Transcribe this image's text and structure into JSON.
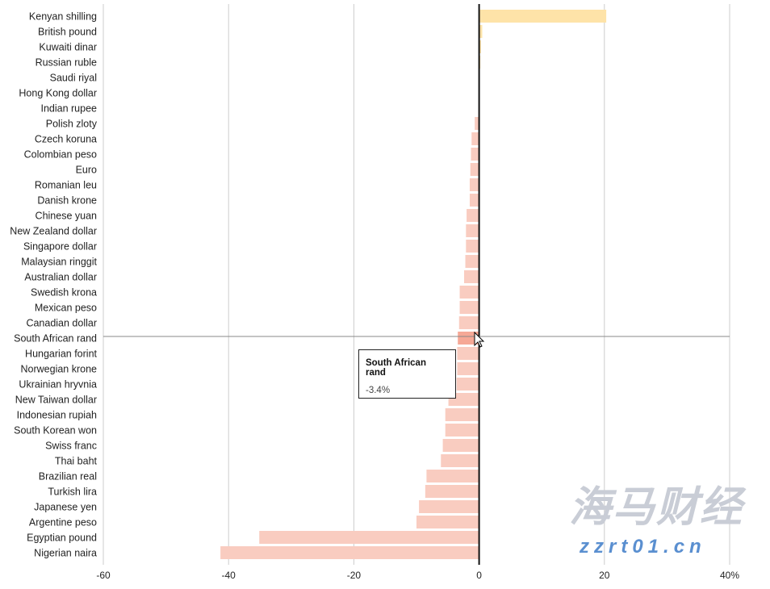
{
  "chart_data": {
    "type": "bar",
    "orientation": "horizontal",
    "categories": [
      "Kenyan shilling",
      "British pound",
      "Kuwaiti dinar",
      "Russian ruble",
      "Saudi riyal",
      "Hong Kong dollar",
      "Indian rupee",
      "Polish zloty",
      "Czech koruna",
      "Colombian peso",
      "Euro",
      "Romanian leu",
      "Danish krone",
      "Chinese yuan",
      "New Zealand dollar",
      "Singapore dollar",
      "Malaysian ringgit",
      "Australian dollar",
      "Swedish krona",
      "Mexican peso",
      "Canadian dollar",
      "South African rand",
      "Hungarian forint",
      "Norwegian krone",
      "Ukrainian hryvnia",
      "New Taiwan dollar",
      "Indonesian rupiah",
      "South Korean won",
      "Swiss franc",
      "Thai baht",
      "Brazilian real",
      "Turkish lira",
      "Japanese yen",
      "Argentine peso",
      "Egyptian pound",
      "Nigerian naira"
    ],
    "values": [
      20.3,
      0.5,
      0.3,
      0.2,
      0,
      0,
      -0.1,
      -0.7,
      -1.2,
      -1.3,
      -1.4,
      -1.5,
      -1.5,
      -2.0,
      -2.1,
      -2.1,
      -2.2,
      -2.4,
      -3.1,
      -3.1,
      -3.2,
      -3.4,
      -3.5,
      -3.5,
      -3.6,
      -4.9,
      -5.4,
      -5.4,
      -5.8,
      -6.1,
      -8.4,
      -8.6,
      -9.6,
      -10.0,
      -35.1,
      -41.3
    ],
    "xlim": [
      -60,
      40
    ],
    "x_ticks": [
      "-60",
      "-40",
      "-20",
      "0",
      "20",
      "40%"
    ],
    "x_tick_values": [
      -60,
      -40,
      -20,
      0,
      20,
      40
    ],
    "grid": true,
    "colors": {
      "positive": "#fee3a8",
      "negative": "#f9ccc0",
      "highlight": "#f6a896",
      "zero_line": "#111111",
      "grid": "#cccccc"
    },
    "highlighted": "South African rand"
  },
  "tooltip": {
    "name": "South African rand",
    "value": "-3.4%"
  },
  "watermark": {
    "text": "海马财经",
    "url": "zzrt01.cn"
  }
}
